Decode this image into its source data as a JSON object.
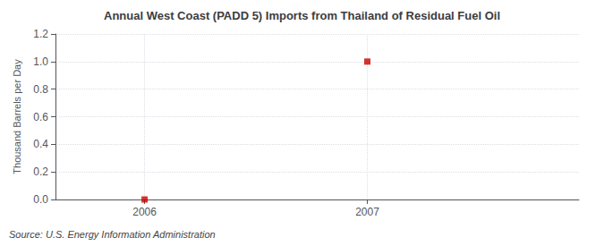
{
  "chart_data": {
    "type": "scatter",
    "title": "Annual West Coast (PADD 5) Imports from Thailand of Residual Fuel Oil",
    "ylabel": "Thousand Barrels per Day",
    "source": "Source: U.S. Energy Information Administration",
    "x": [
      2006,
      2007
    ],
    "values": [
      0.0,
      1.0
    ],
    "color": "#cc0000",
    "marker": "square",
    "xlim": [
      2005.6,
      2007.95
    ],
    "xticks": [
      2006,
      2007
    ],
    "ylim": [
      0.0,
      1.2
    ],
    "yticks": [
      {
        "value": 0.0,
        "label": "0.0"
      },
      0.2,
      0.4,
      0.6,
      0.8,
      {
        "value": 1.0,
        "label": "1.0"
      },
      1.2
    ],
    "grid": true
  }
}
